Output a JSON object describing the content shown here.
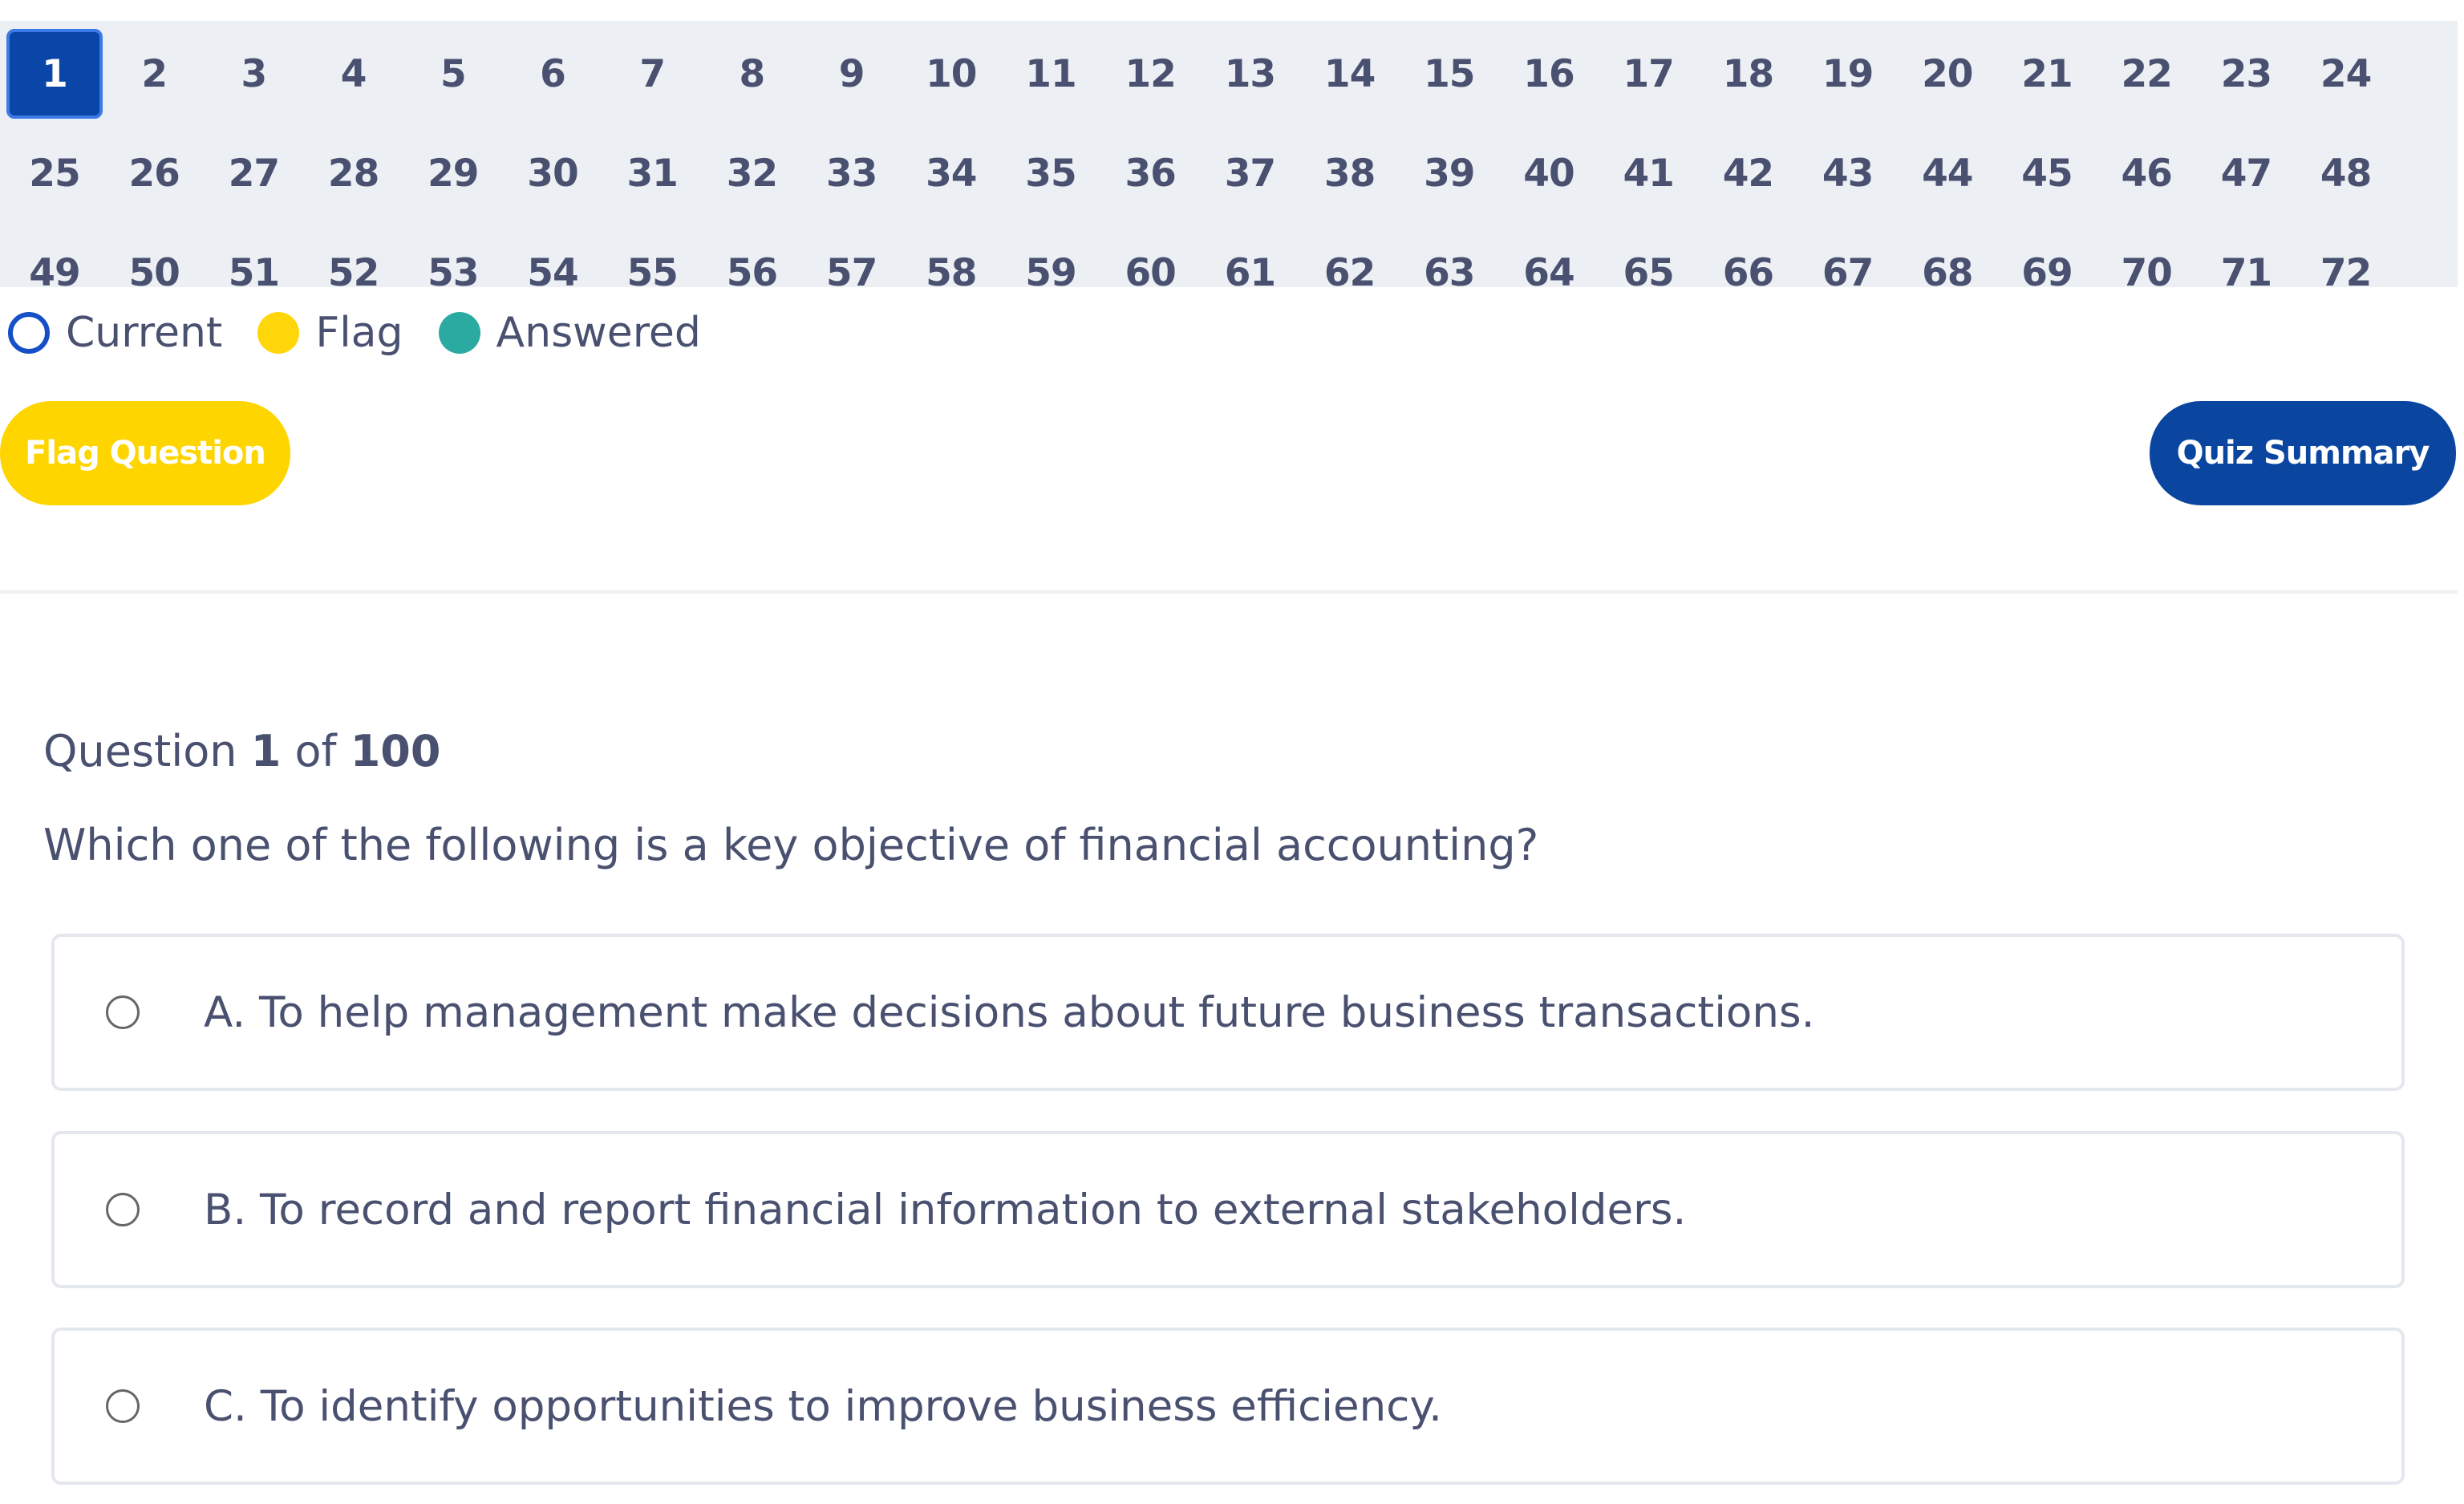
{
  "question_nav": {
    "current": "1",
    "numbers": [
      "1",
      "2",
      "3",
      "4",
      "5",
      "6",
      "7",
      "8",
      "9",
      "10",
      "11",
      "12",
      "13",
      "14",
      "15",
      "16",
      "17",
      "18",
      "19",
      "20",
      "21",
      "22",
      "23",
      "24",
      "25",
      "26",
      "27",
      "28",
      "29",
      "30",
      "31",
      "32",
      "33",
      "34",
      "35",
      "36",
      "37",
      "38",
      "39",
      "40",
      "41",
      "42",
      "43",
      "44",
      "45",
      "46",
      "47",
      "48",
      "49",
      "50",
      "51",
      "52",
      "53",
      "54",
      "55",
      "56",
      "57",
      "58",
      "59",
      "60",
      "61",
      "62",
      "63",
      "64",
      "65",
      "66",
      "67",
      "68",
      "69",
      "70",
      "71",
      "72"
    ]
  },
  "legend": {
    "current": "Current",
    "flag": "Flag",
    "answered": "Answered"
  },
  "buttons": {
    "flag_question": "Flag Question",
    "quiz_summary": "Quiz Summary"
  },
  "question": {
    "prefix": "Question",
    "number": "1",
    "of_word": "of",
    "total": "100",
    "text": "Which one of the following is a key objective of financial accounting?",
    "options": [
      "A. To help management make decisions about future business transactions.",
      "B. To record and report financial information to external stakeholders.",
      "C. To identify opportunities to improve business efficiency."
    ]
  },
  "colors": {
    "current_blue": "#0a46a8",
    "flag_yellow": "#ffd500",
    "answered_teal": "#2aaaa1",
    "summary_blue": "#0a46a0"
  }
}
